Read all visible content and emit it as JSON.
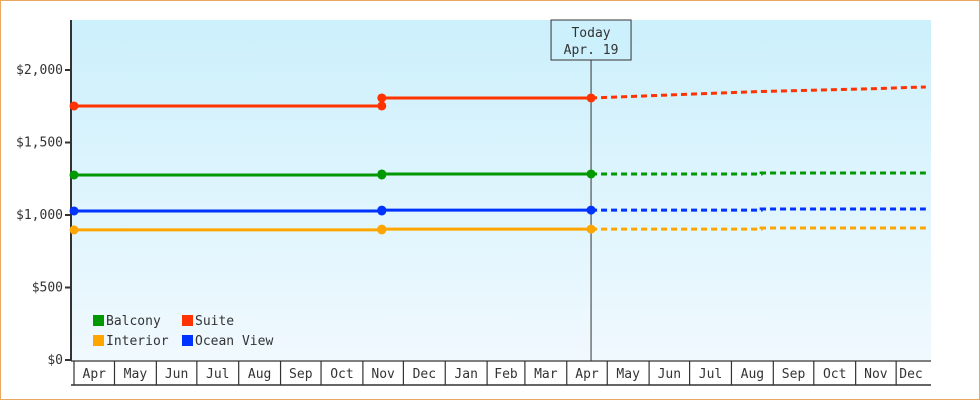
{
  "chart_data": {
    "type": "line",
    "today_marker": {
      "line1": "Today",
      "line2": "Apr. 19",
      "date": "Apr 19"
    },
    "x_range": [
      "Apr 1",
      "Dec 23"
    ],
    "x_tick_labels": [
      "Apr",
      "May",
      "Jun",
      "Jul",
      "Aug",
      "Sep",
      "Oct",
      "Nov",
      "Dec",
      "Jan",
      "Feb",
      "Mar",
      "Apr",
      "May",
      "Jun",
      "Jul",
      "Aug",
      "Sep",
      "Oct",
      "Nov",
      "Dec"
    ],
    "y_ticks": [
      0,
      500,
      1000,
      1500,
      2000
    ],
    "y_tick_labels": [
      "$0",
      "$500",
      "$1,000",
      "$1,500",
      "$2,000"
    ],
    "ylim": [
      0,
      2340
    ],
    "grid": false,
    "legend_position": "bottom-left",
    "series": [
      {
        "name": "Balcony",
        "color": "#009900",
        "points": [
          {
            "date": "Apr 1",
            "value": 1276
          },
          {
            "date": "Nov 15",
            "value": 1276
          },
          {
            "date": "Nov 15",
            "value": 1283
          },
          {
            "date": "Apr 19",
            "value": 1283
          }
        ],
        "forecast": [
          {
            "date": "Apr 19",
            "value": 1283
          },
          {
            "date": "Aug 23",
            "value": 1283
          },
          {
            "date": "Aug 23",
            "value": 1290
          },
          {
            "date": "Dec 23",
            "value": 1290
          }
        ]
      },
      {
        "name": "Suite",
        "color": "#ff3300",
        "points": [
          {
            "date": "Apr 1",
            "value": 1752
          },
          {
            "date": "Nov 15",
            "value": 1752
          },
          {
            "date": "Nov 15",
            "value": 1807
          },
          {
            "date": "Apr 19",
            "value": 1807
          }
        ],
        "forecast": [
          {
            "date": "Apr 19",
            "value": 1807
          },
          {
            "date": "Aug 23",
            "value": 1852
          },
          {
            "date": "Nov 18",
            "value": 1872
          },
          {
            "date": "Dec 11",
            "value": 1880
          },
          {
            "date": "Dec 23",
            "value": 1883
          }
        ]
      },
      {
        "name": "Interior",
        "color": "#ffa500",
        "points": [
          {
            "date": "Apr 1",
            "value": 897
          },
          {
            "date": "Nov 15",
            "value": 897
          },
          {
            "date": "Nov 15",
            "value": 903
          },
          {
            "date": "Apr 19",
            "value": 903
          }
        ],
        "forecast": [
          {
            "date": "Apr 19",
            "value": 903
          },
          {
            "date": "Aug 23",
            "value": 903
          },
          {
            "date": "Aug 23",
            "value": 910
          },
          {
            "date": "Dec 23",
            "value": 910
          }
        ]
      },
      {
        "name": "Ocean View",
        "color": "#0033ff",
        "points": [
          {
            "date": "Apr 1",
            "value": 1028
          },
          {
            "date": "Nov 15",
            "value": 1028
          },
          {
            "date": "Nov 15",
            "value": 1034
          },
          {
            "date": "Apr 19",
            "value": 1034
          }
        ],
        "forecast": [
          {
            "date": "Apr 19",
            "value": 1034
          },
          {
            "date": "Aug 23",
            "value": 1034
          },
          {
            "date": "Aug 23",
            "value": 1041
          },
          {
            "date": "Dec 23",
            "value": 1041
          }
        ]
      }
    ]
  }
}
